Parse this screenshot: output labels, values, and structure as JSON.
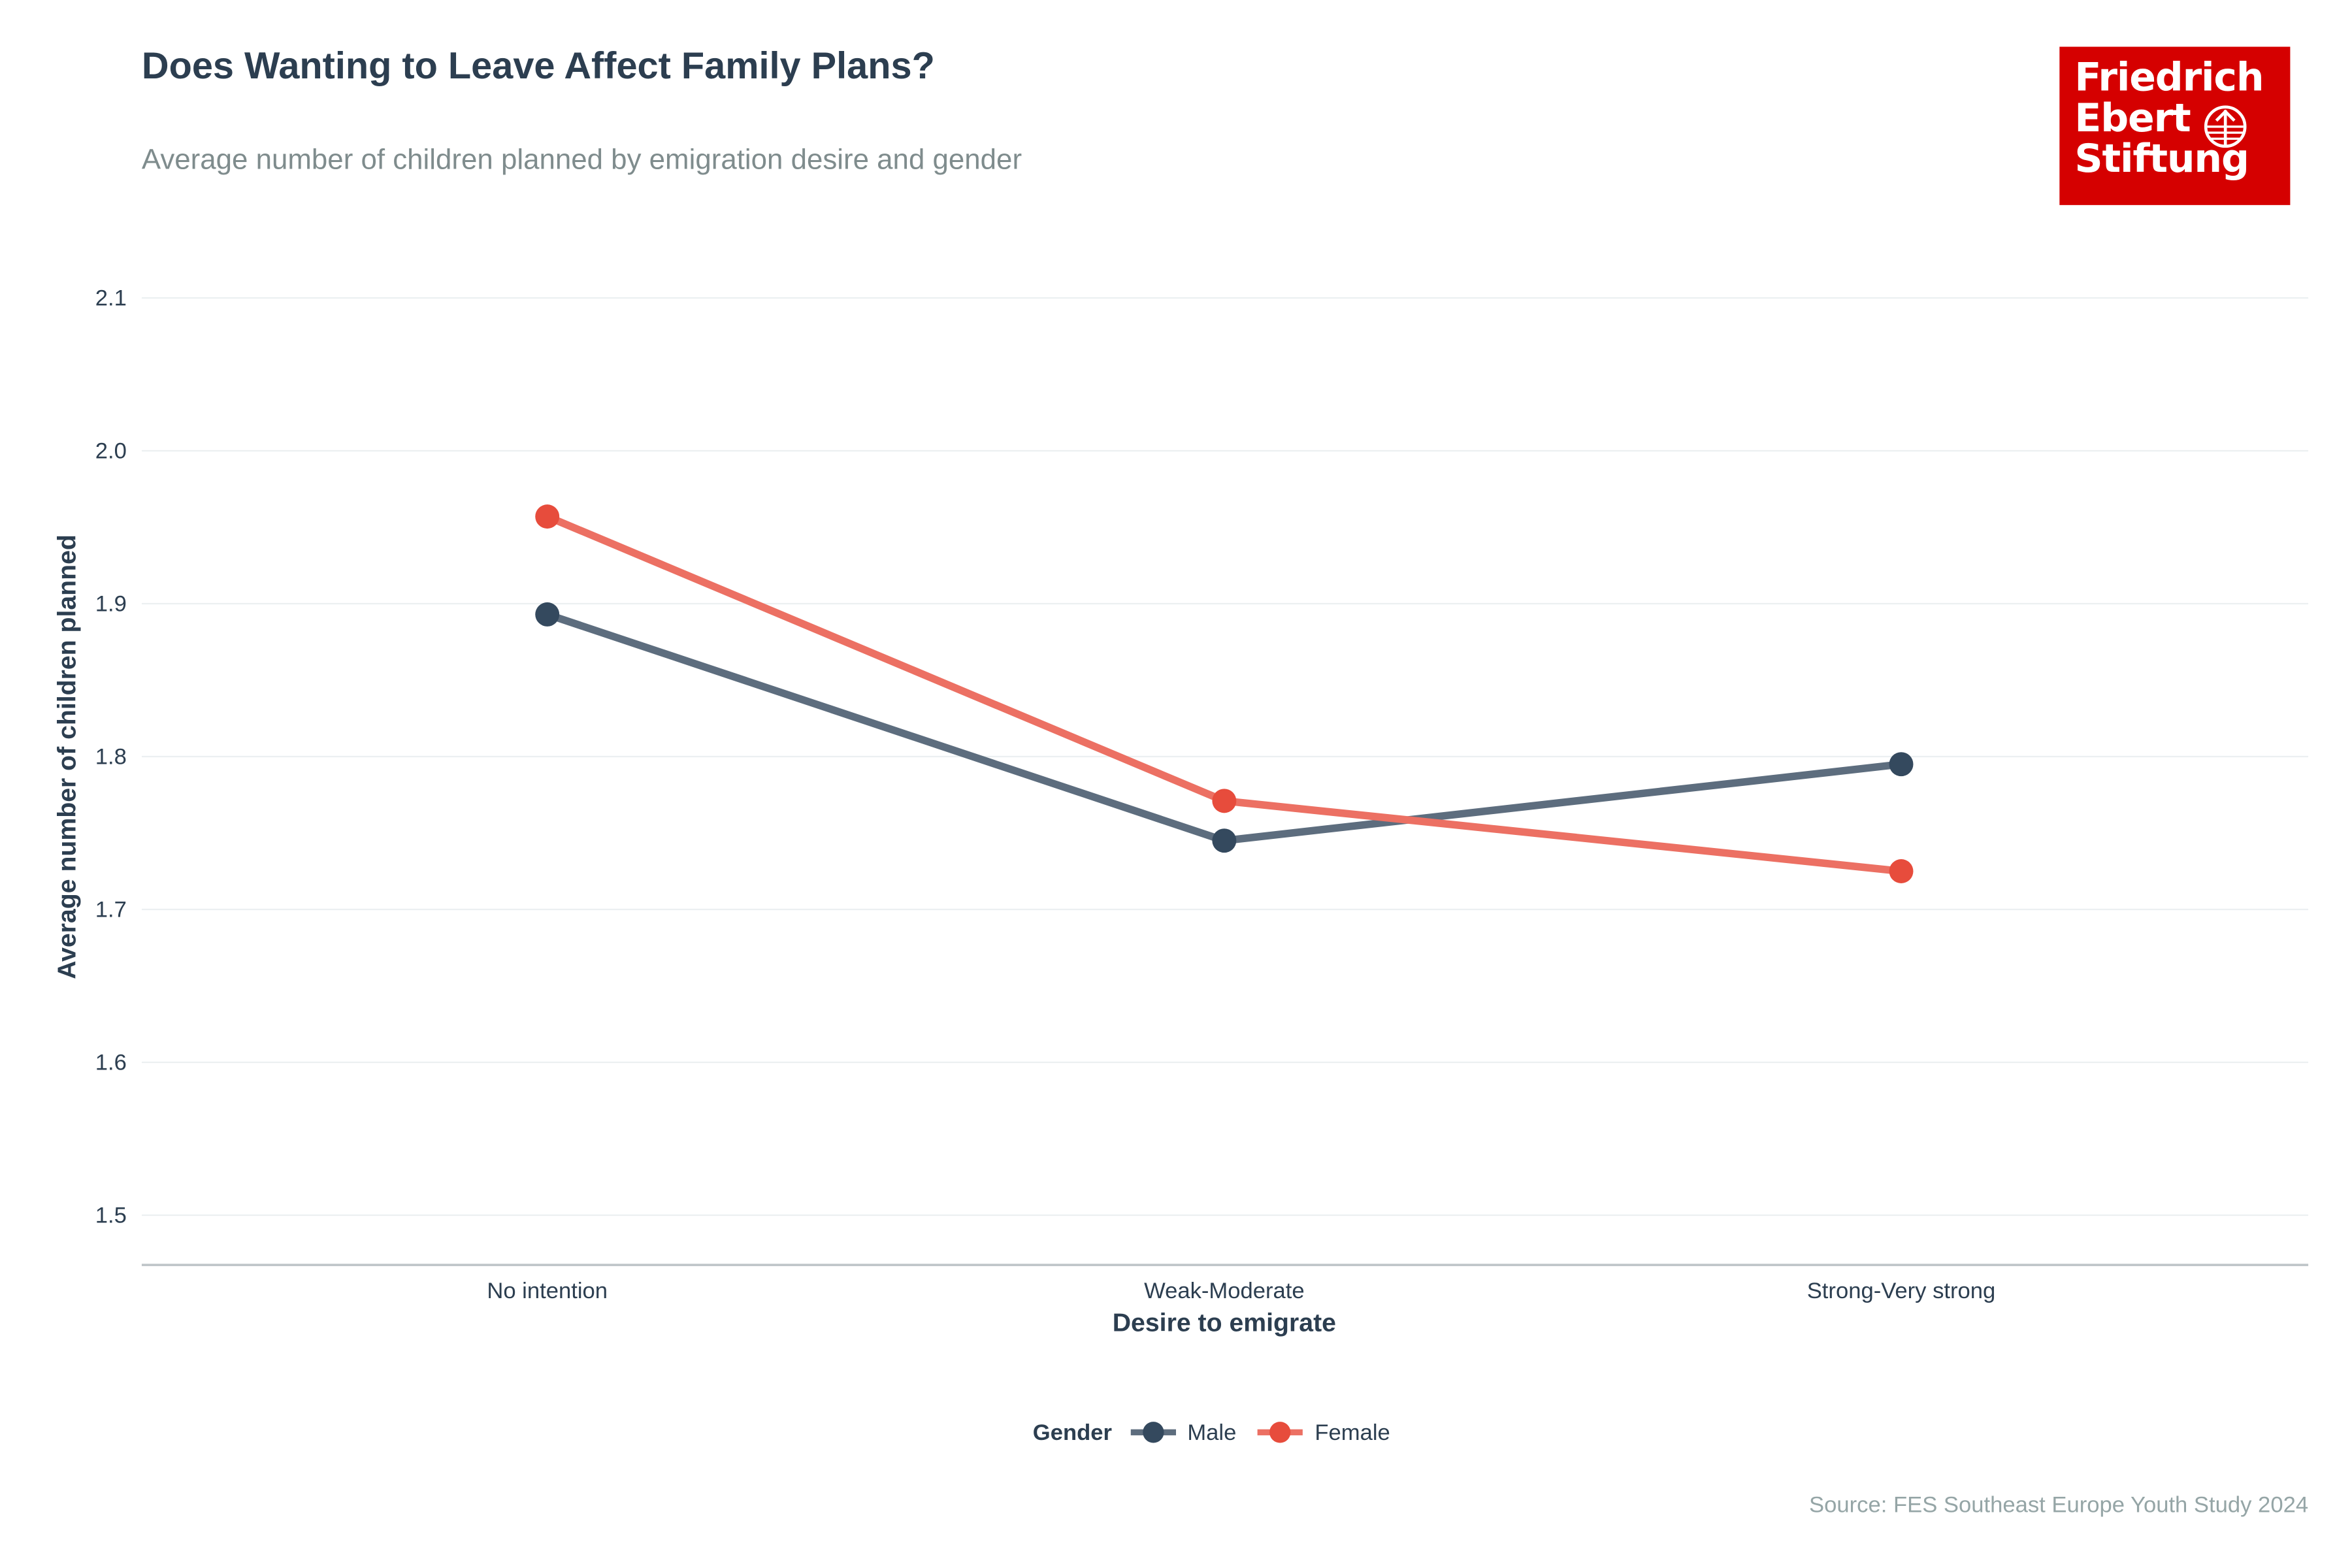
{
  "title": "Does Wanting to Leave Affect Family Plans?",
  "subtitle": "Average number of children planned by emigration desire and gender",
  "logo": {
    "lines": [
      "Friedrich",
      "Ebert",
      "Stiftung"
    ],
    "color": "#d50000"
  },
  "source": "Source: FES Southeast Europe Youth Study 2024",
  "chart_data": {
    "type": "line",
    "title": "Does Wanting to Leave Affect Family Plans?",
    "xlabel": "Desire to emigrate",
    "ylabel": "Average number of children planned",
    "categories": [
      "No intention",
      "Weak-Moderate",
      "Strong-Very strong"
    ],
    "ylim": [
      1.47,
      2.12
    ],
    "yticks": [
      "1.5",
      "1.6",
      "1.7",
      "1.8",
      "1.9",
      "2.0",
      "2.1"
    ],
    "grid": true,
    "legend": {
      "title": "Gender",
      "placement": "bottom"
    },
    "series": [
      {
        "name": "Male",
        "color": "#34495e",
        "values": [
          1.893,
          1.745,
          1.795
        ]
      },
      {
        "name": "Female",
        "color": "#e74c3c",
        "values": [
          1.957,
          1.771,
          1.725
        ]
      }
    ]
  }
}
